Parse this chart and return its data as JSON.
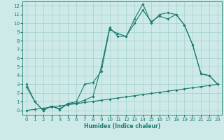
{
  "bg_color": "#ceeae8",
  "grid_color": "#a8d4d0",
  "line_color": "#1a7a6e",
  "xlabel": "Humidex (Indice chaleur)",
  "xlim": [
    -0.5,
    23.5
  ],
  "ylim": [
    -0.5,
    12.5
  ],
  "xticks": [
    0,
    1,
    2,
    3,
    4,
    5,
    6,
    7,
    8,
    9,
    10,
    11,
    12,
    13,
    14,
    15,
    16,
    17,
    18,
    19,
    20,
    21,
    22,
    23
  ],
  "yticks": [
    0,
    1,
    2,
    3,
    4,
    5,
    6,
    7,
    8,
    9,
    10,
    11,
    12
  ],
  "line1_x": [
    0,
    1,
    2,
    3,
    4,
    5,
    6,
    7,
    8,
    9,
    10,
    11,
    12,
    13,
    14,
    15,
    16,
    17,
    18,
    19,
    20,
    21,
    22,
    23
  ],
  "line1_y": [
    0.0,
    0.13,
    0.26,
    0.39,
    0.52,
    0.65,
    0.78,
    0.91,
    1.04,
    1.17,
    1.3,
    1.43,
    1.56,
    1.69,
    1.82,
    1.95,
    2.08,
    2.21,
    2.34,
    2.47,
    2.6,
    2.73,
    2.86,
    3.0
  ],
  "line2_x": [
    0,
    1,
    2,
    3,
    4,
    5,
    6,
    7,
    8,
    9,
    10,
    11,
    12,
    13,
    14,
    15,
    16,
    17,
    18,
    19,
    20,
    21,
    22,
    23
  ],
  "line2_y": [
    3.0,
    1.0,
    0.0,
    0.5,
    0.1,
    0.8,
    0.8,
    1.2,
    1.6,
    5.0,
    9.5,
    8.5,
    8.5,
    10.5,
    12.2,
    10.0,
    11.0,
    11.2,
    11.0,
    9.8,
    7.5,
    4.2,
    4.0,
    3.0
  ],
  "line3_x": [
    0,
    1,
    2,
    3,
    4,
    5,
    6,
    7,
    8,
    9,
    10,
    11,
    12,
    13,
    14,
    15,
    16,
    17,
    18,
    19,
    20,
    21,
    22,
    23
  ],
  "line3_y": [
    2.7,
    1.0,
    0.0,
    0.5,
    0.2,
    0.8,
    1.0,
    3.0,
    3.2,
    4.5,
    9.3,
    8.8,
    8.5,
    10.0,
    11.5,
    10.2,
    10.8,
    10.5,
    11.0,
    9.8,
    7.5,
    4.2,
    4.0,
    3.0
  ],
  "marker_size": 2.0,
  "line_width": 0.8,
  "tick_fontsize": 5.0,
  "xlabel_fontsize": 5.5
}
